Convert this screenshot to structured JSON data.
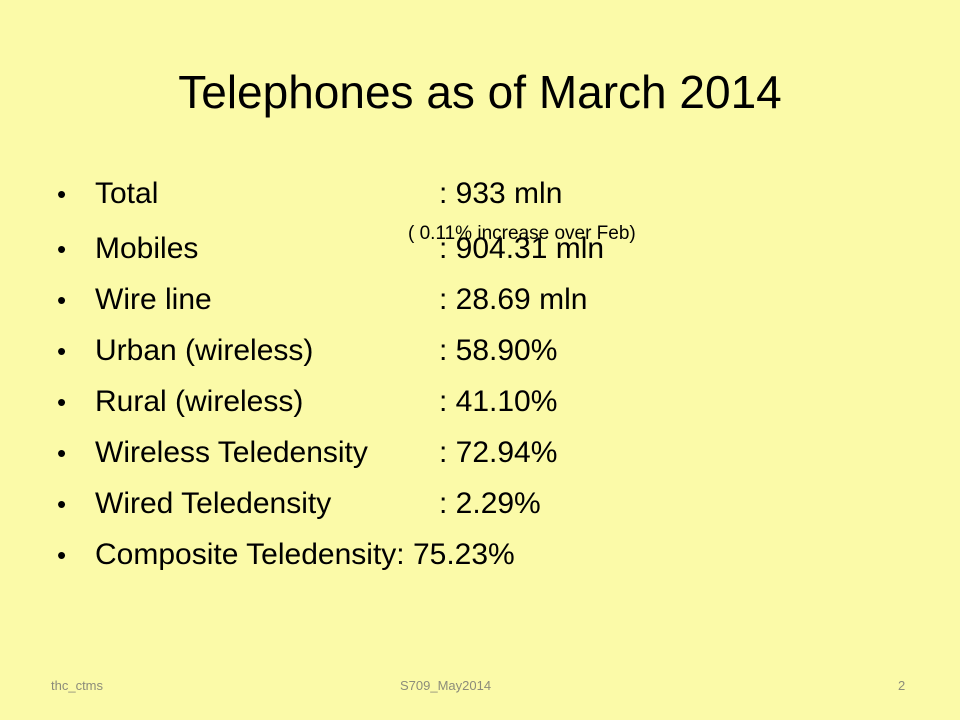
{
  "slide": {
    "title": "Telephones as of  March 2014",
    "bullet_glyph": "•",
    "items": [
      {
        "label": "Total",
        "value": ": 933 mln"
      },
      {
        "label": "Mobiles",
        "value": ": 904.31 mln"
      },
      {
        "label": "Wire line",
        "value": ": 28.69 mln"
      },
      {
        "label": "Urban (wireless)",
        "value": ": 58.90%"
      },
      {
        "label": "Rural (wireless)",
        "value": ": 41.10%"
      },
      {
        "label": "Wireless  Teledensity",
        "value": ": 72.94%"
      },
      {
        "label": "Wired Teledensity",
        "value": ": 2.29%"
      },
      {
        "label": "Composite Teledensity: 75.23%"
      }
    ],
    "note": "( 0.11% increase over Feb)"
  },
  "footer": {
    "left": "thc_ctms",
    "center": "S709_May2014",
    "page_number": "2"
  }
}
